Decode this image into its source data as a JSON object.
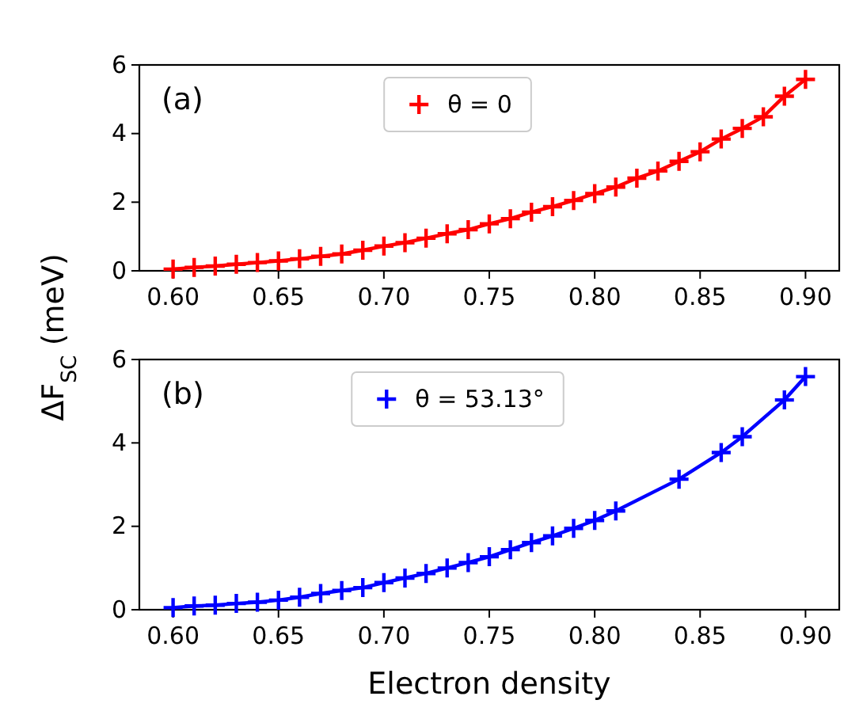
{
  "chart_data": [
    {
      "type": "line",
      "ylabel": "ΔF$_{SC}$ (meV)",
      "annotations": [
        "(a)"
      ],
      "x": [
        0.6,
        0.61,
        0.62,
        0.63,
        0.64,
        0.65,
        0.66,
        0.67,
        0.68,
        0.69,
        0.7,
        0.71,
        0.72,
        0.73,
        0.74,
        0.75,
        0.76,
        0.77,
        0.78,
        0.79,
        0.8,
        0.81,
        0.82,
        0.83,
        0.84,
        0.85,
        0.86,
        0.87,
        0.88,
        0.89,
        0.9
      ],
      "series": [
        {
          "name": "θ = 0",
          "color": "#ff0000",
          "values": [
            0.05,
            0.1,
            0.14,
            0.19,
            0.24,
            0.29,
            0.35,
            0.42,
            0.49,
            0.6,
            0.72,
            0.82,
            0.95,
            1.08,
            1.2,
            1.37,
            1.52,
            1.71,
            1.87,
            2.05,
            2.25,
            2.44,
            2.7,
            2.91,
            3.19,
            3.47,
            3.84,
            4.15,
            4.49,
            5.09,
            5.58
          ]
        }
      ],
      "xlim": [
        0.584,
        0.916
      ],
      "ylim": [
        0,
        6
      ],
      "xticks": [
        {
          "value": 0.6,
          "label": "0.60"
        },
        {
          "value": 0.65,
          "label": "0.65"
        },
        {
          "value": 0.7,
          "label": "0.70"
        },
        {
          "value": 0.75,
          "label": "0.75"
        },
        {
          "value": 0.8,
          "label": "0.80"
        },
        {
          "value": 0.85,
          "label": "0.85"
        },
        {
          "value": 0.9,
          "label": "0.90"
        }
      ],
      "yticks": [
        0,
        2,
        4,
        6
      ],
      "marker": "cross",
      "line_style": "solid",
      "legend": "top",
      "grid": false
    },
    {
      "type": "line",
      "xlabel": "Electron density",
      "annotations": [
        "(b)"
      ],
      "x": [
        0.6,
        0.61,
        0.62,
        0.63,
        0.64,
        0.65,
        0.66,
        0.67,
        0.68,
        0.69,
        0.7,
        0.71,
        0.72,
        0.73,
        0.74,
        0.75,
        0.76,
        0.77,
        0.78,
        0.79,
        0.8,
        0.81,
        0.84,
        0.86,
        0.87,
        0.89,
        0.9
      ],
      "series": [
        {
          "name": "θ = 53.13°",
          "color": "#0000ff",
          "values": [
            0.05,
            0.09,
            0.11,
            0.15,
            0.18,
            0.23,
            0.3,
            0.39,
            0.46,
            0.53,
            0.65,
            0.76,
            0.87,
            1.0,
            1.13,
            1.27,
            1.44,
            1.61,
            1.77,
            1.95,
            2.14,
            2.37,
            3.13,
            3.77,
            4.15,
            5.03,
            5.59
          ]
        }
      ],
      "xlim": [
        0.584,
        0.916
      ],
      "ylim": [
        0,
        6
      ],
      "xticks": [
        {
          "value": 0.6,
          "label": "0.60"
        },
        {
          "value": 0.65,
          "label": "0.65"
        },
        {
          "value": 0.7,
          "label": "0.70"
        },
        {
          "value": 0.75,
          "label": "0.75"
        },
        {
          "value": 0.8,
          "label": "0.80"
        },
        {
          "value": 0.85,
          "label": "0.85"
        },
        {
          "value": 0.9,
          "label": "0.90"
        }
      ],
      "yticks": [
        0,
        2,
        4,
        6
      ],
      "marker": "cross",
      "line_style": "solid",
      "legend": "top",
      "grid": false
    }
  ]
}
